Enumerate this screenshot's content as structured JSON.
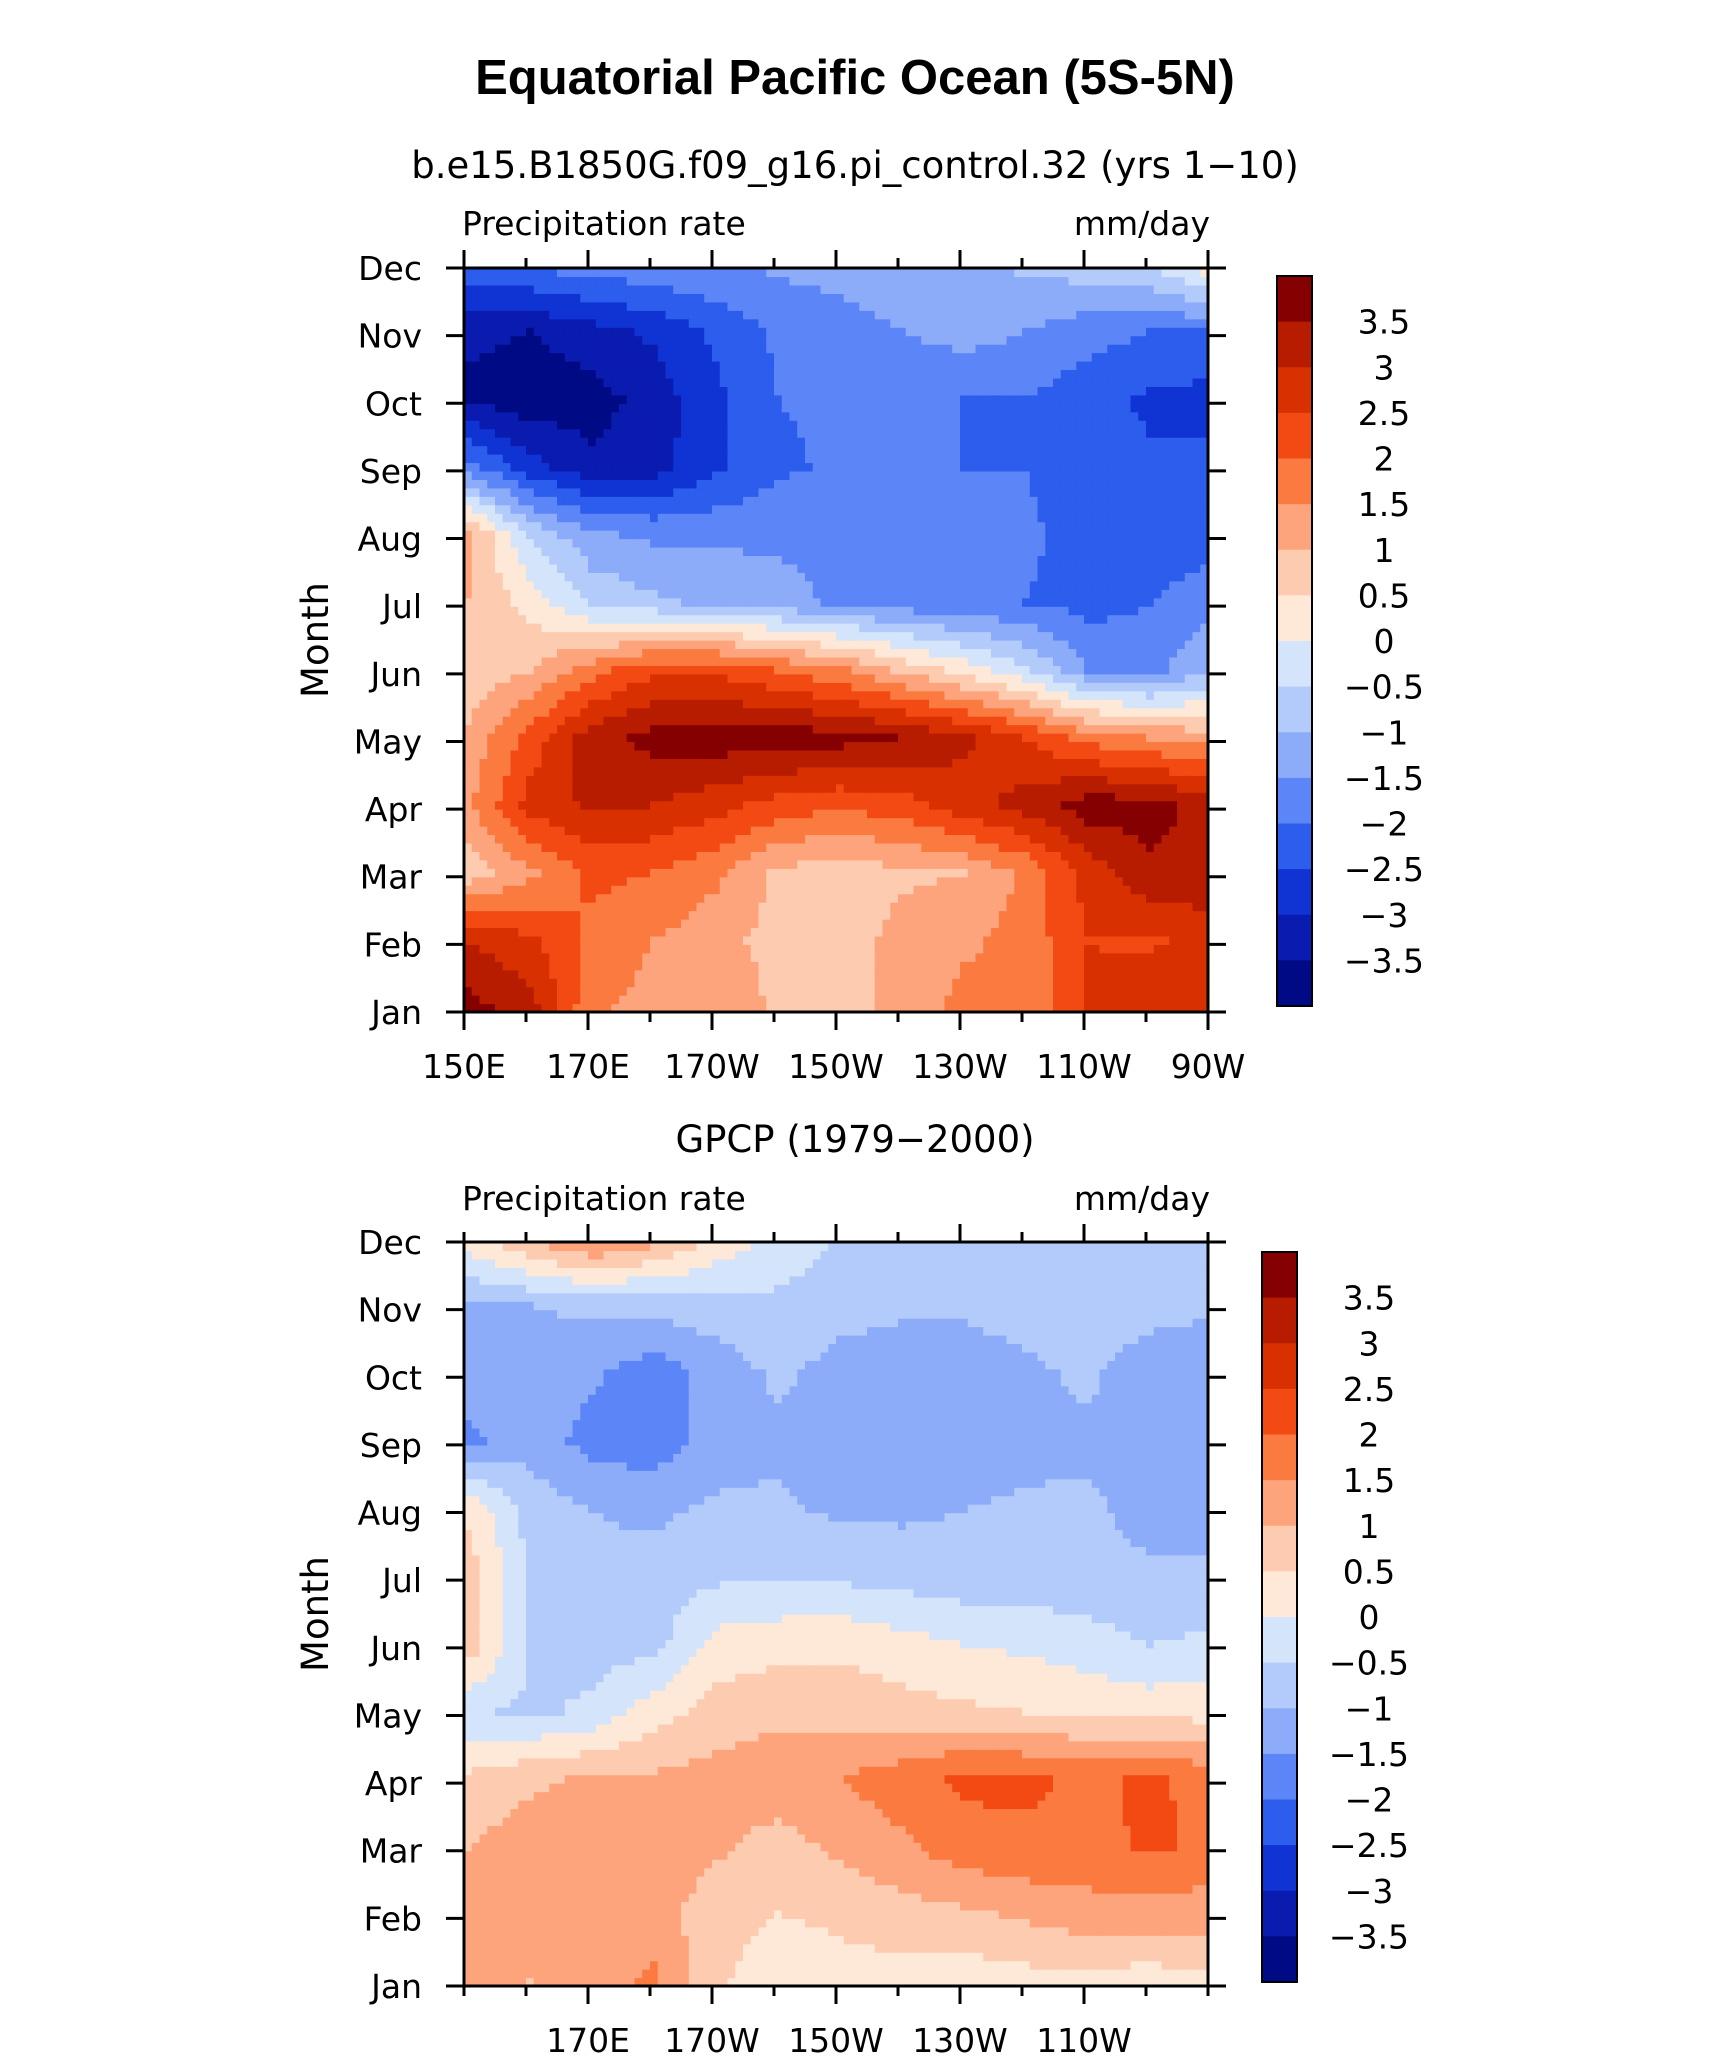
{
  "title": "Equatorial Pacific Ocean (5S-5N)",
  "colorbar": {
    "levels": [
      "3.5",
      "3",
      "2.5",
      "2",
      "1.5",
      "1",
      "0.5",
      "0",
      "−0.5",
      "−1",
      "−1.5",
      "−2",
      "−2.5",
      "−3",
      "−3.5"
    ],
    "colors": [
      "#850000",
      "#b71c00",
      "#d93000",
      "#f34a14",
      "#fa7a40",
      "#fda47c",
      "#fdcbaf",
      "#fee8d7",
      "#d3e4fb",
      "#b2cbfb",
      "#8cacfa",
      "#5c86f7",
      "#2c5ded",
      "#1034d3",
      "#0a1bb0",
      "#000a84"
    ]
  },
  "chart_data": [
    {
      "type": "heatmap",
      "subtitle": "b.e15.B1850G.f09_g16.pi_control.32 (yrs 1−10)",
      "left_label": "Precipitation rate",
      "right_label": "mm/day",
      "ylabel": "Month",
      "y_categories": [
        "Jan",
        "Feb",
        "Mar",
        "Apr",
        "May",
        "Jun",
        "Jul",
        "Aug",
        "Sep",
        "Oct",
        "Nov",
        "Dec"
      ],
      "x_ticks": [
        "150E",
        "170E",
        "170W",
        "150W",
        "130W",
        "110W",
        "90W"
      ],
      "x_range": [
        "150E",
        "90W"
      ],
      "x": [
        "150E",
        "160E",
        "170E",
        "180",
        "170W",
        "160W",
        "150W",
        "140W",
        "130W",
        "120W",
        "110W",
        "100W",
        "90W"
      ],
      "z": [
        [
          3.7,
          3.2,
          1.6,
          1.3,
          1.4,
          0.9,
          0.9,
          1.1,
          1.7,
          1.6,
          2.6,
          2.9,
          2.8
        ],
        [
          3.0,
          2.6,
          1.9,
          1.5,
          1.2,
          0.8,
          0.7,
          1.2,
          1.4,
          1.7,
          2.5,
          2.4,
          2.8
        ],
        [
          0.7,
          1.4,
          2.1,
          2.0,
          1.6,
          0.9,
          0.7,
          0.9,
          1.0,
          1.6,
          2.7,
          3.4,
          3.3
        ],
        [
          1.4,
          2.7,
          3.1,
          3.0,
          2.7,
          2.3,
          2.1,
          2.3,
          2.8,
          3.2,
          3.8,
          3.7,
          3.3
        ],
        [
          1.1,
          2.2,
          3.3,
          3.7,
          3.8,
          3.8,
          3.7,
          3.5,
          3.1,
          2.5,
          1.8,
          1.5,
          1.2
        ],
        [
          0.6,
          1.0,
          1.8,
          2.4,
          2.4,
          2.0,
          1.6,
          0.9,
          0.3,
          -0.4,
          -1.5,
          -1.7,
          -1.0
        ],
        [
          1.0,
          0.3,
          -0.6,
          -0.9,
          -1.1,
          -1.3,
          -1.6,
          -1.8,
          -1.9,
          -2.0,
          -2.2,
          -2.0,
          -1.7
        ],
        [
          1.2,
          -0.6,
          -1.4,
          -1.6,
          -1.6,
          -1.6,
          -1.6,
          -1.6,
          -1.7,
          -1.9,
          -2.2,
          -2.3,
          -2.2
        ],
        [
          -1.8,
          -2.8,
          -3.4,
          -3.2,
          -2.6,
          -2.1,
          -1.9,
          -1.9,
          -2.0,
          -2.0,
          -2.3,
          -2.4,
          -2.3
        ],
        [
          -3.6,
          -3.8,
          -3.7,
          -3.3,
          -2.6,
          -2.0,
          -1.9,
          -1.9,
          -2.0,
          -2.0,
          -2.3,
          -2.6,
          -2.7
        ],
        [
          -3.4,
          -3.5,
          -3.2,
          -2.9,
          -2.4,
          -1.9,
          -1.7,
          -1.5,
          -1.3,
          -1.5,
          -1.8,
          -2.0,
          -2.0
        ],
        [
          -2.0,
          -1.9,
          -1.7,
          -1.6,
          -1.5,
          -1.4,
          -1.3,
          -1.2,
          -1.1,
          -0.9,
          -0.7,
          -0.4,
          0.4
        ]
      ]
    },
    {
      "type": "heatmap",
      "subtitle": "GPCP (1979−2000)",
      "left_label": "Precipitation rate",
      "right_label": "mm/day",
      "ylabel": "Month",
      "y_categories": [
        "Jan",
        "Feb",
        "Mar",
        "Apr",
        "May",
        "Jun",
        "Jul",
        "Aug",
        "Sep",
        "Oct",
        "Nov",
        "Dec"
      ],
      "x_ticks": [
        "170E",
        "170W",
        "150W",
        "130W",
        "110W"
      ],
      "x_range": [
        "150E",
        "90W"
      ],
      "x": [
        "150E",
        "160E",
        "170E",
        "180",
        "170W",
        "160W",
        "150W",
        "140W",
        "130W",
        "120W",
        "110W",
        "100W",
        "90W"
      ],
      "z": [
        [
          1.1,
          1.0,
          1.2,
          1.6,
          0.6,
          0.2,
          0.3,
          0.3,
          0.2,
          0.3,
          0.3,
          0.2,
          0.4
        ],
        [
          1.3,
          1.2,
          1.3,
          1.2,
          0.7,
          0.5,
          0.6,
          0.8,
          0.9,
          1.1,
          1.3,
          1.3,
          1.2
        ],
        [
          1.0,
          1.3,
          1.2,
          1.4,
          1.1,
          0.8,
          1.1,
          1.4,
          1.8,
          1.9,
          1.8,
          2.1,
          1.9
        ],
        [
          0.6,
          0.9,
          1.1,
          1.1,
          1.2,
          1.3,
          1.5,
          1.8,
          2.1,
          2.1,
          1.9,
          2.1,
          1.8
        ],
        [
          -0.4,
          -0.6,
          -0.4,
          0.3,
          0.7,
          0.9,
          0.8,
          0.7,
          0.6,
          0.5,
          0.4,
          0.3,
          0.3
        ],
        [
          0.8,
          -0.5,
          -0.7,
          -0.7,
          0.2,
          0.3,
          0.4,
          0.2,
          0.0,
          -0.1,
          -0.3,
          -0.5,
          -0.4
        ],
        [
          0.8,
          -0.6,
          -0.9,
          -0.8,
          -0.6,
          -0.5,
          -0.6,
          -0.7,
          -0.8,
          -0.8,
          -0.8,
          -0.9,
          -0.9
        ],
        [
          0.4,
          -0.7,
          -1.0,
          -1.1,
          -0.9,
          -0.9,
          -1.1,
          -1.1,
          -1.0,
          -0.9,
          -0.9,
          -1.2,
          -1.2
        ],
        [
          -1.6,
          -1.2,
          -1.7,
          -1.8,
          -1.3,
          -1.1,
          -1.3,
          -1.3,
          -1.4,
          -1.2,
          -1.1,
          -1.2,
          -1.3
        ],
        [
          -1.3,
          -1.2,
          -1.4,
          -1.8,
          -1.3,
          -0.9,
          -1.2,
          -1.3,
          -1.3,
          -1.1,
          -0.9,
          -1.3,
          -1.4
        ],
        [
          -1.1,
          -1.0,
          -0.9,
          -0.8,
          -0.7,
          -0.6,
          -0.8,
          -0.9,
          -0.9,
          -0.8,
          -0.7,
          -0.8,
          -0.9
        ],
        [
          0.3,
          1.1,
          1.7,
          1.2,
          0.4,
          -0.2,
          -0.5,
          -0.7,
          -0.6,
          -0.6,
          -0.7,
          -0.8,
          -0.8
        ]
      ]
    }
  ]
}
